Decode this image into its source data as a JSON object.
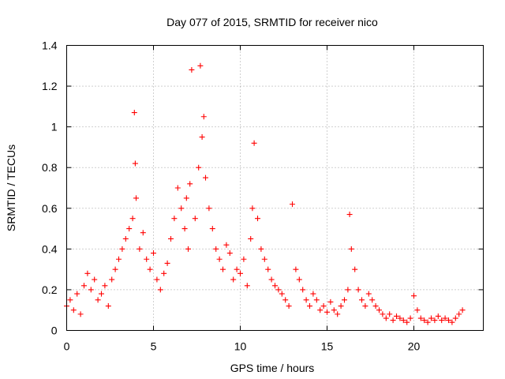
{
  "chart_data": {
    "type": "scatter",
    "title": "Day 077 of 2015, SRMTID for receiver nico",
    "xlabel": "GPS time / hours",
    "ylabel": "SRMTID / TECUs",
    "xlim": [
      0,
      24
    ],
    "ylim": [
      0,
      1.4
    ],
    "xticks": [
      0,
      5,
      10,
      15,
      20
    ],
    "yticks": [
      0,
      0.2,
      0.4,
      0.6,
      0.8,
      1,
      1.2,
      1.4
    ],
    "xtick_labels": [
      "0",
      "5",
      "10",
      "15",
      "20"
    ],
    "ytick_labels": [
      "0",
      "0.2",
      "0.4",
      "0.6",
      "0.8",
      "1",
      "1.2",
      "1.4"
    ],
    "grid": true,
    "marker": "plus",
    "color": "#ff0000",
    "series": [
      {
        "name": "SRMTID",
        "x": [
          0.0,
          0.2,
          0.4,
          0.6,
          0.8,
          1.0,
          1.2,
          1.4,
          1.6,
          1.8,
          2.0,
          2.2,
          2.4,
          2.6,
          2.8,
          3.0,
          3.2,
          3.4,
          3.6,
          3.8,
          3.9,
          3.95,
          4.0,
          4.2,
          4.4,
          4.6,
          4.8,
          5.0,
          5.2,
          5.4,
          5.6,
          5.8,
          6.0,
          6.2,
          6.4,
          6.6,
          6.8,
          6.9,
          7.0,
          7.1,
          7.2,
          7.4,
          7.6,
          7.7,
          7.8,
          7.9,
          8.0,
          8.2,
          8.4,
          8.6,
          8.8,
          9.0,
          9.2,
          9.4,
          9.6,
          9.8,
          10.0,
          10.2,
          10.4,
          10.6,
          10.7,
          10.8,
          11.0,
          11.2,
          11.4,
          11.6,
          11.8,
          12.0,
          12.2,
          12.4,
          12.6,
          12.8,
          13.0,
          13.2,
          13.4,
          13.6,
          13.8,
          14.0,
          14.2,
          14.4,
          14.6,
          14.8,
          15.0,
          15.2,
          15.4,
          15.6,
          15.8,
          16.0,
          16.2,
          16.3,
          16.4,
          16.6,
          16.8,
          17.0,
          17.2,
          17.4,
          17.6,
          17.8,
          18.0,
          18.2,
          18.4,
          18.6,
          18.8,
          19.0,
          19.2,
          19.4,
          19.6,
          19.8,
          20.0,
          20.2,
          20.4,
          20.6,
          20.8,
          21.0,
          21.2,
          21.4,
          21.6,
          21.8,
          22.0,
          22.2,
          22.4,
          22.6,
          22.8
        ],
        "y": [
          0.12,
          0.15,
          0.1,
          0.18,
          0.08,
          0.22,
          0.28,
          0.2,
          0.25,
          0.15,
          0.18,
          0.22,
          0.12,
          0.25,
          0.3,
          0.35,
          0.4,
          0.45,
          0.5,
          0.55,
          1.07,
          0.82,
          0.65,
          0.4,
          0.48,
          0.35,
          0.3,
          0.38,
          0.25,
          0.2,
          0.28,
          0.33,
          0.45,
          0.55,
          0.7,
          0.6,
          0.5,
          0.65,
          0.4,
          0.72,
          1.28,
          0.55,
          0.8,
          1.3,
          0.95,
          1.05,
          0.75,
          0.6,
          0.5,
          0.4,
          0.35,
          0.3,
          0.42,
          0.38,
          0.25,
          0.3,
          0.28,
          0.35,
          0.22,
          0.45,
          0.6,
          0.92,
          0.55,
          0.4,
          0.35,
          0.3,
          0.25,
          0.22,
          0.2,
          0.18,
          0.15,
          0.12,
          0.62,
          0.3,
          0.25,
          0.2,
          0.15,
          0.12,
          0.18,
          0.15,
          0.1,
          0.12,
          0.09,
          0.14,
          0.1,
          0.08,
          0.12,
          0.15,
          0.2,
          0.57,
          0.4,
          0.3,
          0.2,
          0.15,
          0.12,
          0.18,
          0.15,
          0.12,
          0.1,
          0.08,
          0.06,
          0.08,
          0.05,
          0.07,
          0.06,
          0.05,
          0.04,
          0.06,
          0.17,
          0.1,
          0.06,
          0.05,
          0.04,
          0.06,
          0.05,
          0.07,
          0.05,
          0.06,
          0.05,
          0.04,
          0.06,
          0.08,
          0.1
        ]
      }
    ]
  }
}
